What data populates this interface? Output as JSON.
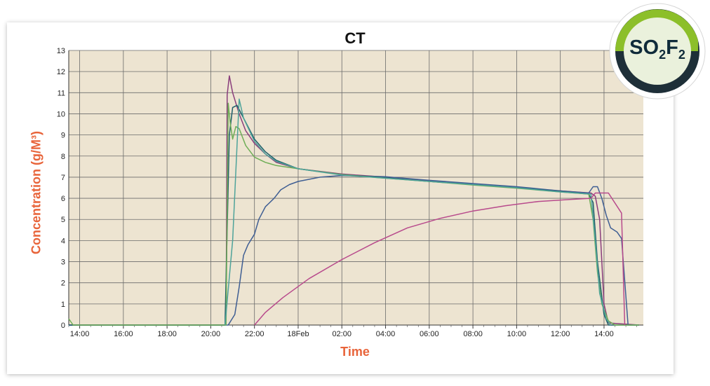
{
  "badge": {
    "main_a": "SO",
    "sub_a": "2",
    "main_b": "F",
    "sub_b": "2"
  },
  "chart_data": {
    "type": "line",
    "title": "CT",
    "xlabel": "Time",
    "ylabel": "Concentration (g/M³)",
    "ylim": [
      0,
      13
    ],
    "y_ticks": [
      "0",
      "1",
      "2",
      "3",
      "4",
      "5",
      "6",
      "7",
      "8",
      "9",
      "10",
      "11",
      "12",
      "13"
    ],
    "x_unit": "hours from 14:00 (day 1)",
    "xlim": [
      -0.5,
      25.8
    ],
    "x_ticks": [
      {
        "x": 0,
        "label": "14:00"
      },
      {
        "x": 2,
        "label": "16:00"
      },
      {
        "x": 4,
        "label": "18:00"
      },
      {
        "x": 6,
        "label": "20:00"
      },
      {
        "x": 8,
        "label": "22:00"
      },
      {
        "x": 10,
        "label": "18Feb"
      },
      {
        "x": 12,
        "label": "02:00"
      },
      {
        "x": 14,
        "label": "04:00"
      },
      {
        "x": 16,
        "label": "06:00"
      },
      {
        "x": 18,
        "label": "08:00"
      },
      {
        "x": 20,
        "label": "10:00"
      },
      {
        "x": 22,
        "label": "12:00"
      },
      {
        "x": 24,
        "label": "14:00"
      }
    ],
    "grid": true,
    "plot_background": "#ede4d1",
    "series": [
      {
        "color": "#8a3e7c",
        "points": [
          [
            -0.5,
            0
          ],
          [
            6.7,
            0
          ],
          [
            6.75,
            10.9
          ],
          [
            6.85,
            11.8
          ],
          [
            7.0,
            11.0
          ],
          [
            7.3,
            10.0
          ],
          [
            7.6,
            9.2
          ],
          [
            8.0,
            8.6
          ],
          [
            8.5,
            8.1
          ],
          [
            9,
            7.7
          ],
          [
            10,
            7.4
          ],
          [
            12,
            7.15
          ],
          [
            14,
            7.0
          ],
          [
            16,
            6.82
          ],
          [
            18,
            6.65
          ],
          [
            20,
            6.5
          ],
          [
            22,
            6.35
          ],
          [
            23.4,
            6.25
          ],
          [
            23.6,
            6.1
          ],
          [
            23.8,
            5.0
          ],
          [
            24.0,
            1.0
          ],
          [
            24.2,
            0.1
          ],
          [
            25.6,
            0
          ]
        ]
      },
      {
        "color": "#3f5e93",
        "points": [
          [
            -0.5,
            0
          ],
          [
            6.8,
            0
          ],
          [
            7.1,
            0.5
          ],
          [
            7.3,
            1.8
          ],
          [
            7.5,
            3.3
          ],
          [
            7.7,
            3.8
          ],
          [
            8.0,
            4.3
          ],
          [
            8.2,
            5.0
          ],
          [
            8.5,
            5.6
          ],
          [
            8.9,
            6.0
          ],
          [
            9.2,
            6.4
          ],
          [
            9.6,
            6.65
          ],
          [
            10,
            6.8
          ],
          [
            11,
            7.0
          ],
          [
            12,
            7.08
          ],
          [
            14,
            7.02
          ],
          [
            16,
            6.85
          ],
          [
            18,
            6.7
          ],
          [
            20,
            6.55
          ],
          [
            22,
            6.35
          ],
          [
            23.3,
            6.25
          ],
          [
            23.5,
            6.55
          ],
          [
            23.7,
            6.55
          ],
          [
            23.9,
            6.0
          ],
          [
            24.1,
            5.2
          ],
          [
            24.3,
            4.6
          ],
          [
            24.6,
            4.4
          ],
          [
            24.8,
            4.1
          ],
          [
            25.1,
            0
          ],
          [
            25.6,
            0
          ]
        ]
      },
      {
        "color": "#1f5e6a",
        "points": [
          [
            -0.5,
            0
          ],
          [
            6.65,
            0
          ],
          [
            6.85,
            9.0
          ],
          [
            7.0,
            10.3
          ],
          [
            7.2,
            10.4
          ],
          [
            7.5,
            9.8
          ],
          [
            8.0,
            8.8
          ],
          [
            8.5,
            8.2
          ],
          [
            9,
            7.8
          ],
          [
            10,
            7.4
          ],
          [
            12,
            7.12
          ],
          [
            14,
            6.97
          ],
          [
            16,
            6.8
          ],
          [
            18,
            6.65
          ],
          [
            20,
            6.5
          ],
          [
            22,
            6.32
          ],
          [
            23.3,
            6.2
          ],
          [
            23.5,
            5.8
          ],
          [
            23.7,
            3.0
          ],
          [
            24.0,
            0.5
          ],
          [
            24.2,
            0
          ],
          [
            25.6,
            0
          ]
        ]
      },
      {
        "color": "#6fae57",
        "points": [
          [
            -0.5,
            0.3
          ],
          [
            -0.3,
            0
          ],
          [
            6.7,
            0
          ],
          [
            6.8,
            10.5
          ],
          [
            6.9,
            9.5
          ],
          [
            7.0,
            8.8
          ],
          [
            7.15,
            9.4
          ],
          [
            7.3,
            9.3
          ],
          [
            7.6,
            8.5
          ],
          [
            8.0,
            7.95
          ],
          [
            8.5,
            7.7
          ],
          [
            9,
            7.55
          ],
          [
            10,
            7.4
          ],
          [
            12,
            7.12
          ],
          [
            14,
            6.95
          ],
          [
            16,
            6.8
          ],
          [
            18,
            6.63
          ],
          [
            20,
            6.48
          ],
          [
            22,
            6.3
          ],
          [
            23.3,
            6.2
          ],
          [
            23.5,
            5.0
          ],
          [
            23.7,
            2.5
          ],
          [
            23.9,
            1.0
          ],
          [
            24.2,
            0.2
          ],
          [
            24.5,
            0
          ],
          [
            25.6,
            0
          ]
        ]
      },
      {
        "color": "#4ea39a",
        "points": [
          [
            6.65,
            0
          ],
          [
            7.0,
            4.0
          ],
          [
            7.3,
            10.7
          ],
          [
            7.5,
            9.8
          ],
          [
            8.0,
            8.7
          ],
          [
            8.5,
            8.1
          ],
          [
            9,
            7.75
          ],
          [
            10,
            7.4
          ],
          [
            12,
            7.1
          ],
          [
            14,
            6.95
          ],
          [
            16,
            6.8
          ],
          [
            18,
            6.65
          ],
          [
            20,
            6.5
          ],
          [
            22,
            6.3
          ],
          [
            23.4,
            6.2
          ],
          [
            23.6,
            4.0
          ],
          [
            23.8,
            1.5
          ],
          [
            24.1,
            0.3
          ],
          [
            24.3,
            0
          ]
        ]
      },
      {
        "color": "#b84a8c",
        "points": [
          [
            8.0,
            0
          ],
          [
            8.5,
            0.6
          ],
          [
            9.3,
            1.3
          ],
          [
            10.5,
            2.2
          ],
          [
            12,
            3.1
          ],
          [
            13.5,
            3.9
          ],
          [
            15,
            4.6
          ],
          [
            16.5,
            5.05
          ],
          [
            18,
            5.4
          ],
          [
            19.5,
            5.65
          ],
          [
            21,
            5.85
          ],
          [
            22.5,
            5.95
          ],
          [
            23.4,
            6.0
          ],
          [
            23.6,
            6.25
          ],
          [
            24.2,
            6.25
          ],
          [
            24.8,
            5.3
          ],
          [
            24.95,
            0
          ]
        ]
      }
    ]
  }
}
